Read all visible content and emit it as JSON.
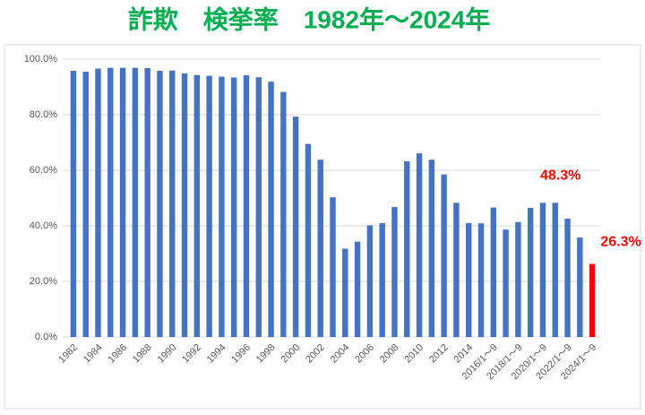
{
  "chart_data": {
    "type": "bar",
    "title": "詐欺　検挙率　1982年～2024年",
    "categories": [
      "1982",
      null,
      "1984",
      null,
      "1986",
      null,
      "1988",
      null,
      "1990",
      null,
      "1992",
      null,
      "1994",
      null,
      "1996",
      null,
      "1998",
      null,
      "2000",
      null,
      "2002",
      null,
      "2004",
      null,
      "2006",
      null,
      "2008",
      null,
      "2010",
      null,
      "2012",
      null,
      "2014",
      null,
      "2016/1～9",
      null,
      "2018/1～9",
      null,
      "2020/1～9",
      null,
      "2022/1～9",
      null,
      "2024/1～9"
    ],
    "values": [
      95.8,
      95.5,
      96.6,
      96.9,
      96.9,
      96.9,
      96.8,
      95.8,
      95.9,
      94.9,
      94.3,
      94.0,
      93.7,
      93.4,
      94.2,
      93.5,
      91.9,
      88.2,
      79.3,
      69.5,
      63.8,
      50.3,
      31.8,
      34.3,
      40.2,
      41.0,
      46.8,
      63.2,
      66.1,
      63.8,
      58.5,
      48.3,
      41.0,
      40.9,
      46.6,
      38.7,
      41.4,
      46.5,
      48.3,
      48.3,
      42.6,
      35.8,
      26.3
    ],
    "value_labels": [
      null,
      null,
      null,
      null,
      null,
      null,
      null,
      null,
      null,
      null,
      null,
      null,
      null,
      null,
      null,
      null,
      null,
      null,
      null,
      null,
      null,
      null,
      null,
      null,
      null,
      null,
      null,
      null,
      null,
      null,
      null,
      null,
      null,
      null,
      null,
      null,
      null,
      null,
      null,
      "48.3%",
      null,
      null,
      "26.3%"
    ],
    "colors": [
      "#4472c4",
      "#4472c4",
      "#4472c4",
      "#4472c4",
      "#4472c4",
      "#4472c4",
      "#4472c4",
      "#4472c4",
      "#4472c4",
      "#4472c4",
      "#4472c4",
      "#4472c4",
      "#4472c4",
      "#4472c4",
      "#4472c4",
      "#4472c4",
      "#4472c4",
      "#4472c4",
      "#4472c4",
      "#4472c4",
      "#4472c4",
      "#4472c4",
      "#4472c4",
      "#4472c4",
      "#4472c4",
      "#4472c4",
      "#4472c4",
      "#4472c4",
      "#4472c4",
      "#4472c4",
      "#4472c4",
      "#4472c4",
      "#4472c4",
      "#4472c4",
      "#4472c4",
      "#4472c4",
      "#4472c4",
      "#4472c4",
      "#4472c4",
      "#4472c4",
      "#4472c4",
      "#4472c4",
      "#ff0000"
    ],
    "ylim": [
      0,
      100
    ],
    "yticks": [
      {
        "value": 0,
        "label": "0.0%"
      },
      {
        "value": 20,
        "label": "20.0%"
      },
      {
        "value": 40,
        "label": "40.0%"
      },
      {
        "value": 60,
        "label": "60.0%"
      },
      {
        "value": 80,
        "label": "80.0%"
      },
      {
        "value": 100,
        "label": "100.0%"
      }
    ],
    "grid": true
  }
}
